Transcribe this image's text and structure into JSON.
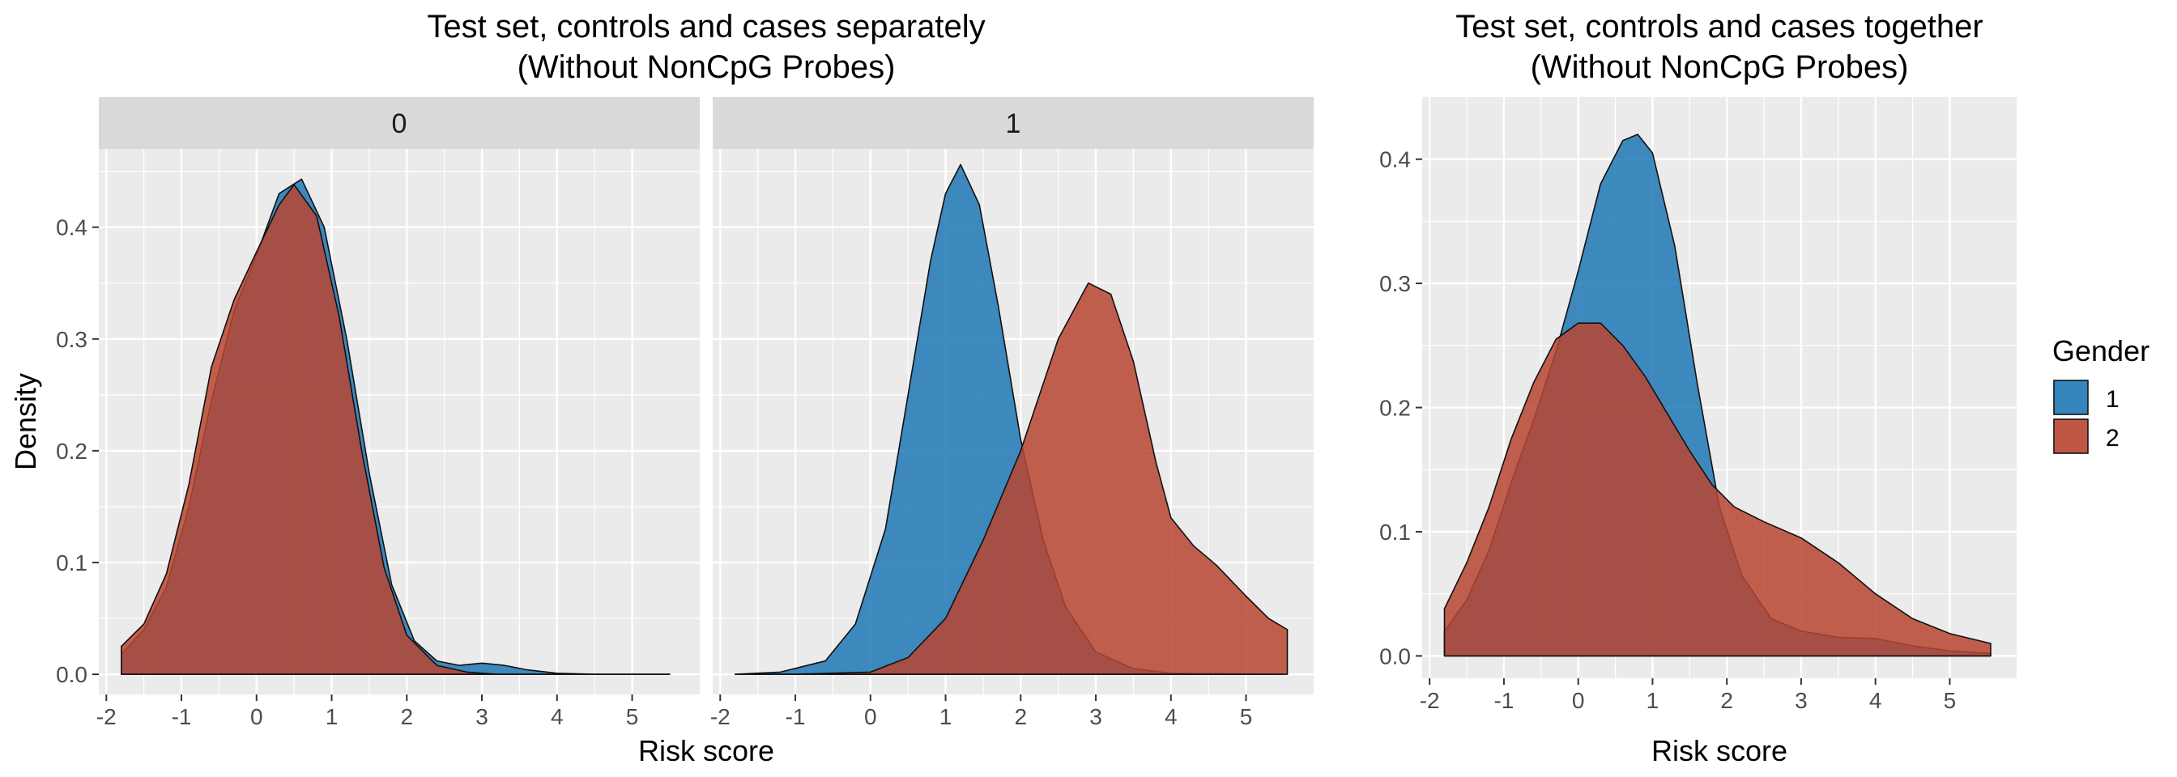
{
  "chart_data": [
    {
      "type": "area",
      "title": "Test set, controls and cases separately",
      "subtitle": "(Without NonCpG Probes)",
      "xlabel": "Risk score",
      "ylabel": "Density",
      "xlim": [
        -2.1,
        5.9
      ],
      "ylim": [
        -0.018,
        0.47
      ],
      "x_ticks": [
        -2,
        -1,
        0,
        1,
        2,
        3,
        4,
        5
      ],
      "y_ticks": [
        0.0,
        0.1,
        0.2,
        0.3,
        0.4
      ],
      "grid": true,
      "facets": [
        {
          "label": "0",
          "series": [
            {
              "name": "1",
              "color": "#1f77b4",
              "points": [
                [
                  -1.8,
                  0.018
                ],
                [
                  -1.5,
                  0.04
                ],
                [
                  -1.2,
                  0.078
                ],
                [
                  -0.9,
                  0.15
                ],
                [
                  -0.6,
                  0.245
                ],
                [
                  -0.3,
                  0.325
                ],
                [
                  0.0,
                  0.375
                ],
                [
                  0.3,
                  0.43
                ],
                [
                  0.6,
                  0.443
                ],
                [
                  0.9,
                  0.4
                ],
                [
                  1.2,
                  0.3
                ],
                [
                  1.5,
                  0.18
                ],
                [
                  1.8,
                  0.08
                ],
                [
                  2.1,
                  0.03
                ],
                [
                  2.4,
                  0.012
                ],
                [
                  2.7,
                  0.008
                ],
                [
                  3.0,
                  0.01
                ],
                [
                  3.3,
                  0.008
                ],
                [
                  3.6,
                  0.004
                ],
                [
                  4.0,
                  0.001
                ],
                [
                  4.5,
                  0.0
                ],
                [
                  5.5,
                  0.0
                ]
              ]
            },
            {
              "name": "2",
              "color": "#b84531",
              "points": [
                [
                  -1.8,
                  0.025
                ],
                [
                  -1.5,
                  0.045
                ],
                [
                  -1.2,
                  0.09
                ],
                [
                  -0.9,
                  0.17
                ],
                [
                  -0.6,
                  0.275
                ],
                [
                  -0.3,
                  0.335
                ],
                [
                  0.0,
                  0.378
                ],
                [
                  0.3,
                  0.42
                ],
                [
                  0.5,
                  0.438
                ],
                [
                  0.8,
                  0.41
                ],
                [
                  1.1,
                  0.32
                ],
                [
                  1.4,
                  0.2
                ],
                [
                  1.7,
                  0.095
                ],
                [
                  2.0,
                  0.035
                ],
                [
                  2.4,
                  0.008
                ],
                [
                  2.8,
                  0.002
                ],
                [
                  3.2,
                  0.0
                ],
                [
                  5.5,
                  0.0
                ]
              ]
            }
          ]
        },
        {
          "label": "1",
          "series": [
            {
              "name": "1",
              "color": "#1f77b4",
              "points": [
                [
                  -1.8,
                  0.0
                ],
                [
                  -1.2,
                  0.002
                ],
                [
                  -0.6,
                  0.012
                ],
                [
                  -0.2,
                  0.045
                ],
                [
                  0.2,
                  0.13
                ],
                [
                  0.5,
                  0.25
                ],
                [
                  0.8,
                  0.37
                ],
                [
                  1.0,
                  0.43
                ],
                [
                  1.2,
                  0.456
                ],
                [
                  1.45,
                  0.42
                ],
                [
                  1.7,
                  0.33
                ],
                [
                  2.0,
                  0.21
                ],
                [
                  2.3,
                  0.12
                ],
                [
                  2.6,
                  0.06
                ],
                [
                  3.0,
                  0.02
                ],
                [
                  3.5,
                  0.005
                ],
                [
                  4.0,
                  0.001
                ],
                [
                  5.5,
                  0.0
                ]
              ]
            },
            {
              "name": "2",
              "color": "#b84531",
              "points": [
                [
                  -1.8,
                  0.0
                ],
                [
                  -1.0,
                  0.0
                ],
                [
                  0.0,
                  0.002
                ],
                [
                  0.5,
                  0.015
                ],
                [
                  1.0,
                  0.05
                ],
                [
                  1.5,
                  0.12
                ],
                [
                  2.0,
                  0.2
                ],
                [
                  2.5,
                  0.3
                ],
                [
                  2.9,
                  0.35
                ],
                [
                  3.2,
                  0.34
                ],
                [
                  3.5,
                  0.28
                ],
                [
                  3.8,
                  0.19
                ],
                [
                  4.0,
                  0.14
                ],
                [
                  4.3,
                  0.115
                ],
                [
                  4.6,
                  0.098
                ],
                [
                  5.0,
                  0.07
                ],
                [
                  5.3,
                  0.05
                ],
                [
                  5.55,
                  0.04
                ]
              ]
            }
          ]
        }
      ]
    },
    {
      "type": "area",
      "title": "Test set, controls and cases together",
      "subtitle": "(Without NonCpG Probes)",
      "xlabel": "Risk score",
      "ylabel": "",
      "xlim": [
        -2.1,
        5.9
      ],
      "ylim": [
        -0.018,
        0.45
      ],
      "x_ticks": [
        -2,
        -1,
        0,
        1,
        2,
        3,
        4,
        5
      ],
      "y_ticks": [
        0.0,
        0.1,
        0.2,
        0.3,
        0.4
      ],
      "grid": true,
      "legend": {
        "title": "Gender",
        "position": "right",
        "entries": [
          {
            "label": "1",
            "color": "#1f77b4"
          },
          {
            "label": "2",
            "color": "#b84531"
          }
        ]
      },
      "series": [
        {
          "name": "1",
          "color": "#1f77b4",
          "points": [
            [
              -1.8,
              0.02
            ],
            [
              -1.5,
              0.045
            ],
            [
              -1.2,
              0.085
            ],
            [
              -0.9,
              0.14
            ],
            [
              -0.6,
              0.19
            ],
            [
              -0.3,
              0.245
            ],
            [
              0.0,
              0.31
            ],
            [
              0.3,
              0.38
            ],
            [
              0.6,
              0.415
            ],
            [
              0.8,
              0.42
            ],
            [
              1.0,
              0.405
            ],
            [
              1.3,
              0.33
            ],
            [
              1.6,
              0.22
            ],
            [
              1.9,
              0.12
            ],
            [
              2.2,
              0.065
            ],
            [
              2.6,
              0.03
            ],
            [
              3.0,
              0.02
            ],
            [
              3.5,
              0.015
            ],
            [
              4.0,
              0.014
            ],
            [
              4.5,
              0.008
            ],
            [
              5.0,
              0.004
            ],
            [
              5.55,
              0.002
            ]
          ]
        },
        {
          "name": "2",
          "color": "#b84531",
          "points": [
            [
              -1.8,
              0.038
            ],
            [
              -1.5,
              0.075
            ],
            [
              -1.2,
              0.12
            ],
            [
              -0.9,
              0.175
            ],
            [
              -0.6,
              0.22
            ],
            [
              -0.3,
              0.255
            ],
            [
              0.0,
              0.268
            ],
            [
              0.3,
              0.268
            ],
            [
              0.6,
              0.25
            ],
            [
              0.9,
              0.225
            ],
            [
              1.2,
              0.195
            ],
            [
              1.5,
              0.165
            ],
            [
              1.8,
              0.138
            ],
            [
              2.1,
              0.12
            ],
            [
              2.5,
              0.108
            ],
            [
              3.0,
              0.095
            ],
            [
              3.5,
              0.075
            ],
            [
              4.0,
              0.05
            ],
            [
              4.5,
              0.03
            ],
            [
              5.0,
              0.018
            ],
            [
              5.55,
              0.01
            ]
          ]
        }
      ]
    }
  ]
}
